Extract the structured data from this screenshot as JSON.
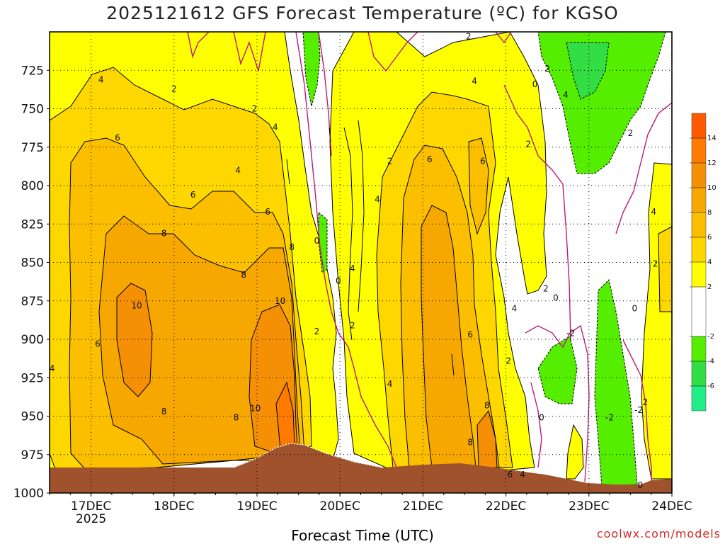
{
  "chart_data": {
    "type": "heatmap",
    "title": "2025121612 GFS Forecast Temperature (ºC) for KGSO",
    "xlabel": "Forecast Time (UTC)",
    "ylabel": "",
    "credit": "coolwx.com/models",
    "y_ticks": [
      725,
      750,
      775,
      800,
      825,
      850,
      875,
      900,
      925,
      950,
      975,
      1000
    ],
    "ylim": [
      1000,
      700
    ],
    "x_ticks": [
      {
        "label": "17DEC",
        "sub": "2025"
      },
      {
        "label": "18DEC",
        "sub": ""
      },
      {
        "label": "19DEC",
        "sub": ""
      },
      {
        "label": "20DEC",
        "sub": ""
      },
      {
        "label": "21DEC",
        "sub": ""
      },
      {
        "label": "22DEC",
        "sub": ""
      },
      {
        "label": "23DEC",
        "sub": ""
      },
      {
        "label": "24DEC",
        "sub": ""
      }
    ],
    "colorbar": {
      "labels": [
        "14",
        "12",
        "10",
        "8",
        "6",
        "4",
        "2",
        "-2",
        "-4",
        "-6"
      ],
      "bins": [
        {
          "from": 14,
          "to": 16,
          "color": "#ff5a00"
        },
        {
          "from": 12,
          "to": 14,
          "color": "#ff7a00"
        },
        {
          "from": 10,
          "to": 12,
          "color": "#f58f06"
        },
        {
          "from": 8,
          "to": 10,
          "color": "#f7a800"
        },
        {
          "from": 6,
          "to": 8,
          "color": "#fbbf00"
        },
        {
          "from": 4,
          "to": 6,
          "color": "#ffd700"
        },
        {
          "from": 2,
          "to": 4,
          "color": "#ffff00"
        },
        {
          "from": -2,
          "to": 2,
          "color": "#ffffff"
        },
        {
          "from": -4,
          "to": -2,
          "color": "#55ee00"
        },
        {
          "from": -6,
          "to": -4,
          "color": "#33dd44"
        },
        {
          "from": -8,
          "to": -6,
          "color": "#22ee88"
        }
      ]
    },
    "contour_labels": [
      {
        "t": "4",
        "day": 17.12,
        "p": 731
      },
      {
        "t": "2",
        "day": 18.0,
        "p": 737
      },
      {
        "t": "2",
        "day": 18.97,
        "p": 750
      },
      {
        "t": "6",
        "day": 17.32,
        "p": 769
      },
      {
        "t": "4",
        "day": 19.22,
        "p": 762
      },
      {
        "t": "4",
        "day": 18.77,
        "p": 790
      },
      {
        "t": "6",
        "day": 18.23,
        "p": 806
      },
      {
        "t": "6",
        "day": 19.13,
        "p": 817
      },
      {
        "t": "8",
        "day": 17.88,
        "p": 831
      },
      {
        "t": "8",
        "day": 19.42,
        "p": 840
      },
      {
        "t": "8",
        "day": 18.84,
        "p": 858
      },
      {
        "t": "10",
        "day": 17.55,
        "p": 878
      },
      {
        "t": "10",
        "day": 19.28,
        "p": 875
      },
      {
        "t": "6",
        "day": 17.08,
        "p": 903
      },
      {
        "t": "4",
        "day": 16.53,
        "p": 919
      },
      {
        "t": "8",
        "day": 17.88,
        "p": 947
      },
      {
        "t": "8",
        "day": 18.75,
        "p": 951
      },
      {
        "t": "10",
        "day": 18.98,
        "p": 945
      },
      {
        "t": "0",
        "day": 19.72,
        "p": 836
      },
      {
        "t": "0",
        "day": 19.98,
        "p": 862
      },
      {
        "t": "4",
        "day": 20.15,
        "p": 854
      },
      {
        "t": "2",
        "day": 19.72,
        "p": 895
      },
      {
        "t": "2",
        "day": 20.15,
        "p": 891
      },
      {
        "t": "2",
        "day": 20.6,
        "p": 784
      },
      {
        "t": "4",
        "day": 20.45,
        "p": 809
      },
      {
        "t": "4",
        "day": 20.6,
        "p": 929
      },
      {
        "t": "6",
        "day": 21.08,
        "p": 783
      },
      {
        "t": "6",
        "day": 21.72,
        "p": 784
      },
      {
        "t": "4",
        "day": 21.62,
        "p": 732
      },
      {
        "t": "2",
        "day": 21.55,
        "p": 703
      },
      {
        "t": "6",
        "day": 21.57,
        "p": 897
      },
      {
        "t": "8",
        "day": 21.77,
        "p": 943
      },
      {
        "t": "8",
        "day": 21.57,
        "p": 967
      },
      {
        "t": "4",
        "day": 22.1,
        "p": 880
      },
      {
        "t": "2",
        "day": 22.03,
        "p": 914
      },
      {
        "t": "2",
        "day": 22.27,
        "p": 773
      },
      {
        "t": "2",
        "day": 22.48,
        "p": 867
      },
      {
        "t": "0",
        "day": 22.6,
        "p": 873
      },
      {
        "t": "6",
        "day": 22.05,
        "p": 988
      },
      {
        "t": "4",
        "day": 22.2,
        "p": 988
      },
      {
        "t": "0",
        "day": 22.35,
        "p": 734
      },
      {
        "t": "2",
        "day": 22.5,
        "p": 724
      },
      {
        "t": "4",
        "day": 22.72,
        "p": 741
      },
      {
        "t": "2",
        "day": 23.5,
        "p": 766
      },
      {
        "t": "0",
        "day": 23.55,
        "p": 880
      },
      {
        "t": "-2",
        "day": 22.78,
        "p": 896
      },
      {
        "t": "0",
        "day": 22.43,
        "p": 951
      },
      {
        "t": "-2",
        "day": 23.25,
        "p": 951
      },
      {
        "t": "2",
        "day": 23.68,
        "p": 941
      },
      {
        "t": "-2",
        "day": 23.6,
        "p": 946
      },
      {
        "t": "0",
        "day": 23.62,
        "p": 995
      },
      {
        "t": "4",
        "day": 23.78,
        "p": 817
      },
      {
        "t": "2",
        "day": 23.8,
        "p": 851
      }
    ]
  }
}
